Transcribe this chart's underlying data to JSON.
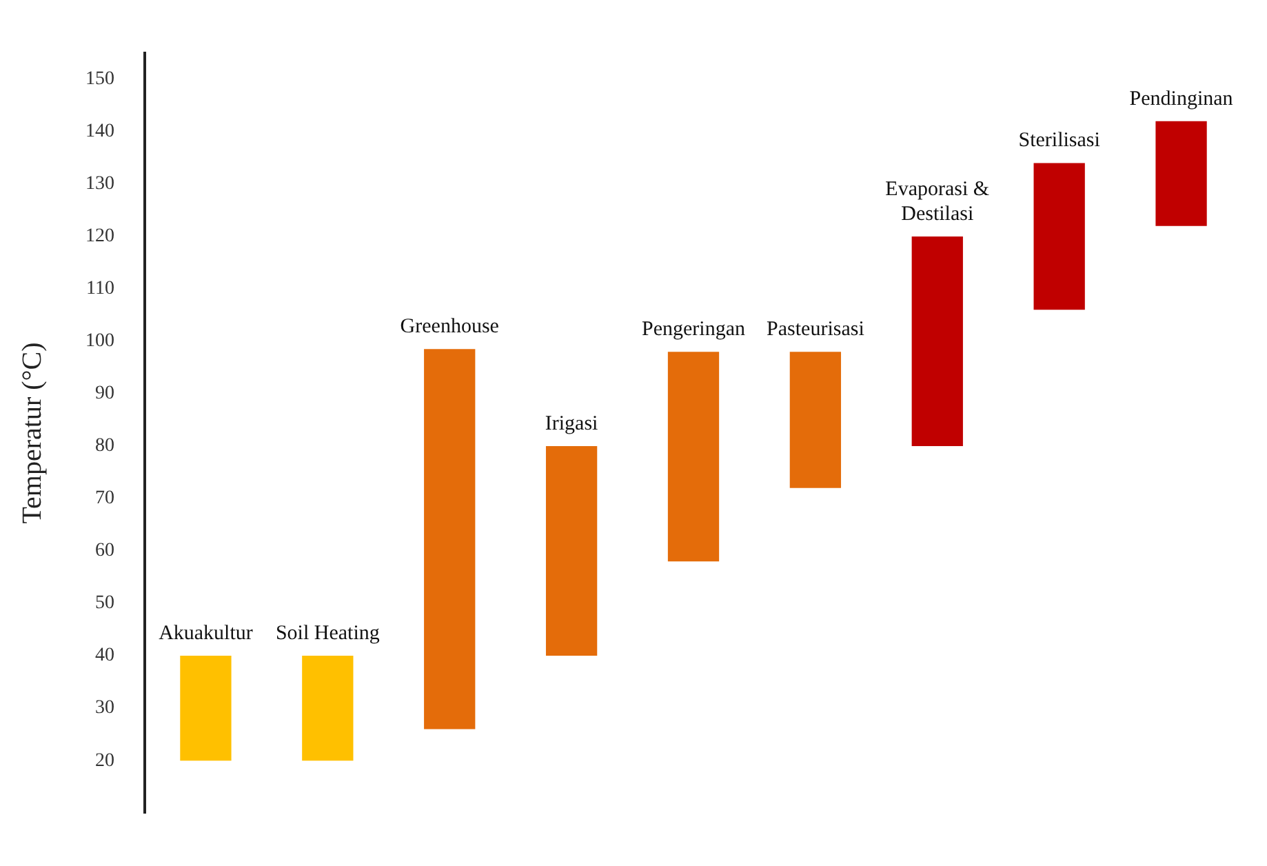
{
  "chart_data": {
    "type": "bar",
    "ylabel": "Temperatur (°C)",
    "categories": [
      "Akuakultur",
      "Soil Heating",
      "Greenhouse",
      "Irigasi",
      "Pengeringan",
      "Pasteurisasi",
      "Evaporasi & Destilasi",
      "Sterilisasi",
      "Pendinginan"
    ],
    "base": [
      20,
      20,
      26,
      40,
      58,
      72,
      80,
      106,
      122
    ],
    "values": [
      20,
      20,
      72.5,
      40,
      40,
      26,
      40,
      28,
      20
    ],
    "colors": [
      "#ffc000",
      "#ffc000",
      "#e46c0a",
      "#e46c0a",
      "#e46c0a",
      "#e46c0a",
      "#c00000",
      "#c00000",
      "#c00000"
    ],
    "ylim": [
      10,
      155
    ],
    "yticks": [
      20,
      30,
      40,
      50,
      60,
      70,
      80,
      90,
      100,
      110,
      120,
      130,
      140,
      150
    ],
    "grid": false,
    "legend": false,
    "tick_labels": "y"
  }
}
